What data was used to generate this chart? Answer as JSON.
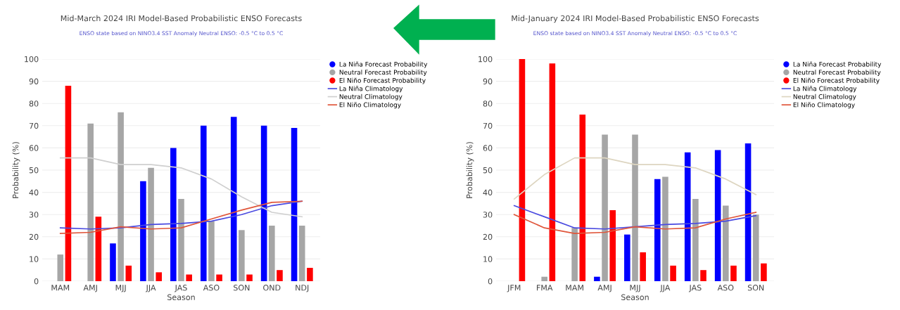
{
  "chart_data": [
    {
      "type": "bar",
      "title": "Mid-March 2024 IRI Model-Based Probabilistic ENSO Forecasts",
      "subtitle": "ENSO state based on NINO3.4 SST Anomaly Neutral ENSO: -0.5 °C to 0.5 °C",
      "xlabel": "Season",
      "ylabel": "Probability (%)",
      "categories": [
        "MAM",
        "AMJ",
        "MJJ",
        "JJA",
        "JAS",
        "ASO",
        "SON",
        "OND",
        "NDJ"
      ],
      "series": [
        {
          "name": "La Niña Forecast Probability",
          "color": "#0000ff",
          "values": [
            0,
            0,
            17,
            45,
            60,
            70,
            74,
            70,
            69
          ]
        },
        {
          "name": "Neutral Forecast Probability",
          "color": "#a6a6a6",
          "values": [
            12,
            71,
            76,
            51,
            37,
            27,
            23,
            25,
            25
          ]
        },
        {
          "name": "El Niño Forecast Probability",
          "color": "#ff0000",
          "values": [
            88,
            29,
            7,
            4,
            3,
            3,
            3,
            5,
            6
          ]
        },
        {
          "type": "line",
          "name": "La Niña Climatology",
          "color": "#4a4ae0",
          "values": [
            24,
            23.5,
            24,
            25.5,
            26,
            27,
            30,
            34,
            36
          ]
        },
        {
          "type": "line",
          "name": "Neutral Climatology",
          "color": "#cfcfcf",
          "values": [
            55.5,
            55.5,
            52.5,
            52.5,
            51,
            46,
            38,
            31,
            29
          ]
        },
        {
          "type": "line",
          "name": "El Niño Climatology",
          "color": "#e0553a",
          "values": [
            21.5,
            22,
            24.5,
            23.5,
            24,
            28,
            32,
            35.5,
            36
          ]
        }
      ],
      "ylim": [
        0,
        100
      ],
      "yticks": [
        0,
        10,
        20,
        30,
        40,
        50,
        60,
        70,
        80,
        90,
        100
      ],
      "grid": "y",
      "legend": "top right"
    },
    {
      "type": "bar",
      "title": "Mid-January 2024 IRI Model-Based Probabilistic ENSO Forecasts",
      "subtitle": "ENSO state based on NINO3.4 SST Anomaly Neutral ENSO: -0.5 °C to 0.5 °C",
      "xlabel": "Season",
      "ylabel": "Probability (%)",
      "categories": [
        "JFM",
        "FMA",
        "MAM",
        "AMJ",
        "MJJ",
        "JJA",
        "JAS",
        "ASO",
        "SON"
      ],
      "series": [
        {
          "name": "La Niña Forecast Probability",
          "color": "#0000ff",
          "values": [
            0,
            0,
            0,
            2,
            21,
            46,
            58,
            59,
            62
          ]
        },
        {
          "name": "Neutral Forecast Probability",
          "color": "#a6a6a6",
          "values": [
            0,
            2,
            24,
            66,
            66,
            47,
            37,
            34,
            30
          ]
        },
        {
          "name": "El Niño Forecast Probability",
          "color": "#ff0000",
          "values": [
            100,
            98,
            75,
            32,
            13,
            7,
            5,
            7,
            8
          ]
        },
        {
          "type": "line",
          "name": "La Niña Climatology",
          "color": "#4a4ae0",
          "values": [
            34,
            29,
            24,
            23.5,
            24.5,
            25.5,
            26,
            27,
            29.5
          ]
        },
        {
          "type": "line",
          "name": "Neutral Climatology",
          "color": "#ddd5c0",
          "values": [
            37,
            48,
            55.5,
            55.5,
            52.5,
            52.5,
            51,
            46,
            39
          ]
        },
        {
          "type": "line",
          "name": "El Niño Climatology",
          "color": "#e0553a",
          "values": [
            30,
            24,
            21.5,
            22,
            24.5,
            23.5,
            24,
            28,
            31
          ]
        }
      ],
      "ylim": [
        0,
        100
      ],
      "yticks": [
        0,
        10,
        20,
        30,
        40,
        50,
        60,
        70,
        80,
        90,
        100
      ],
      "grid": "y",
      "legend": "top right"
    }
  ]
}
